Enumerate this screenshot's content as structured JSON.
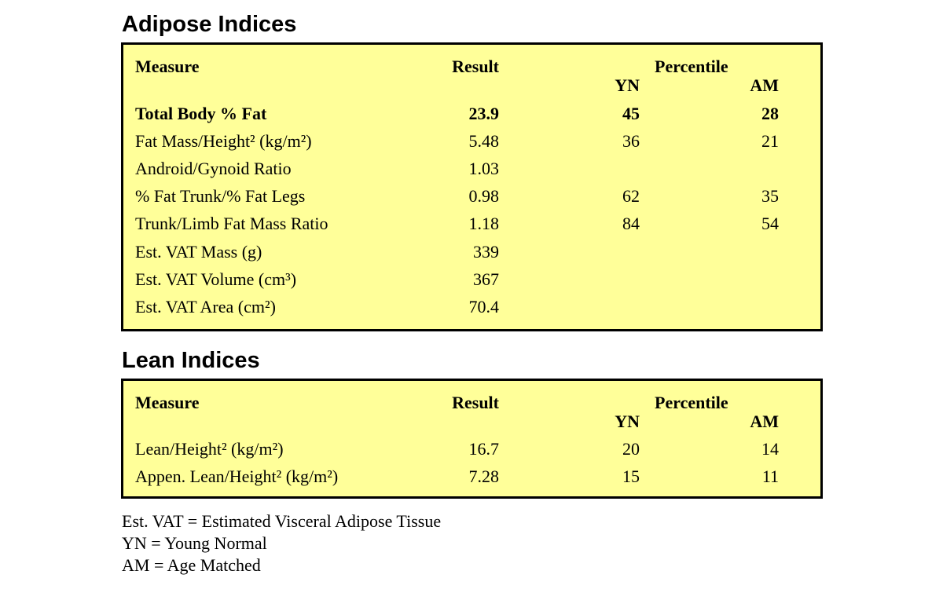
{
  "adipose": {
    "title": "Adipose Indices",
    "headers": {
      "measure": "Measure",
      "result": "Result",
      "percentile": "Percentile",
      "yn": "YN",
      "am": "AM"
    },
    "rows": [
      {
        "measure": "Total Body % Fat",
        "result": "23.9",
        "yn": "45",
        "am": "28"
      },
      {
        "measure": "Fat Mass/Height² (kg/m²)",
        "result": "5.48",
        "yn": "36",
        "am": "21"
      },
      {
        "measure": "Android/Gynoid Ratio",
        "result": "1.03",
        "yn": "",
        "am": ""
      },
      {
        "measure": "% Fat Trunk/% Fat Legs",
        "result": "0.98",
        "yn": "62",
        "am": "35"
      },
      {
        "measure": "Trunk/Limb Fat Mass Ratio",
        "result": "1.18",
        "yn": "84",
        "am": "54"
      },
      {
        "measure": "Est. VAT Mass (g)",
        "result": "339",
        "yn": "",
        "am": ""
      },
      {
        "measure": "Est. VAT Volume (cm³)",
        "result": "367",
        "yn": "",
        "am": ""
      },
      {
        "measure": "Est. VAT Area (cm²)",
        "result": "70.4",
        "yn": "",
        "am": ""
      }
    ]
  },
  "lean": {
    "title": "Lean Indices",
    "headers": {
      "measure": "Measure",
      "result": "Result",
      "percentile": "Percentile",
      "yn": "YN",
      "am": "AM"
    },
    "rows": [
      {
        "measure": "Lean/Height² (kg/m²)",
        "result": "16.7",
        "yn": "20",
        "am": "14"
      },
      {
        "measure": "Appen. Lean/Height² (kg/m²)",
        "result": "7.28",
        "yn": "15",
        "am": "11"
      }
    ]
  },
  "legend": [
    "Est. VAT = Estimated Visceral Adipose Tissue",
    "YN = Young Normal",
    "AM = Age Matched"
  ],
  "colors": {
    "panel_background": "#ffff99",
    "border": "#000000"
  }
}
